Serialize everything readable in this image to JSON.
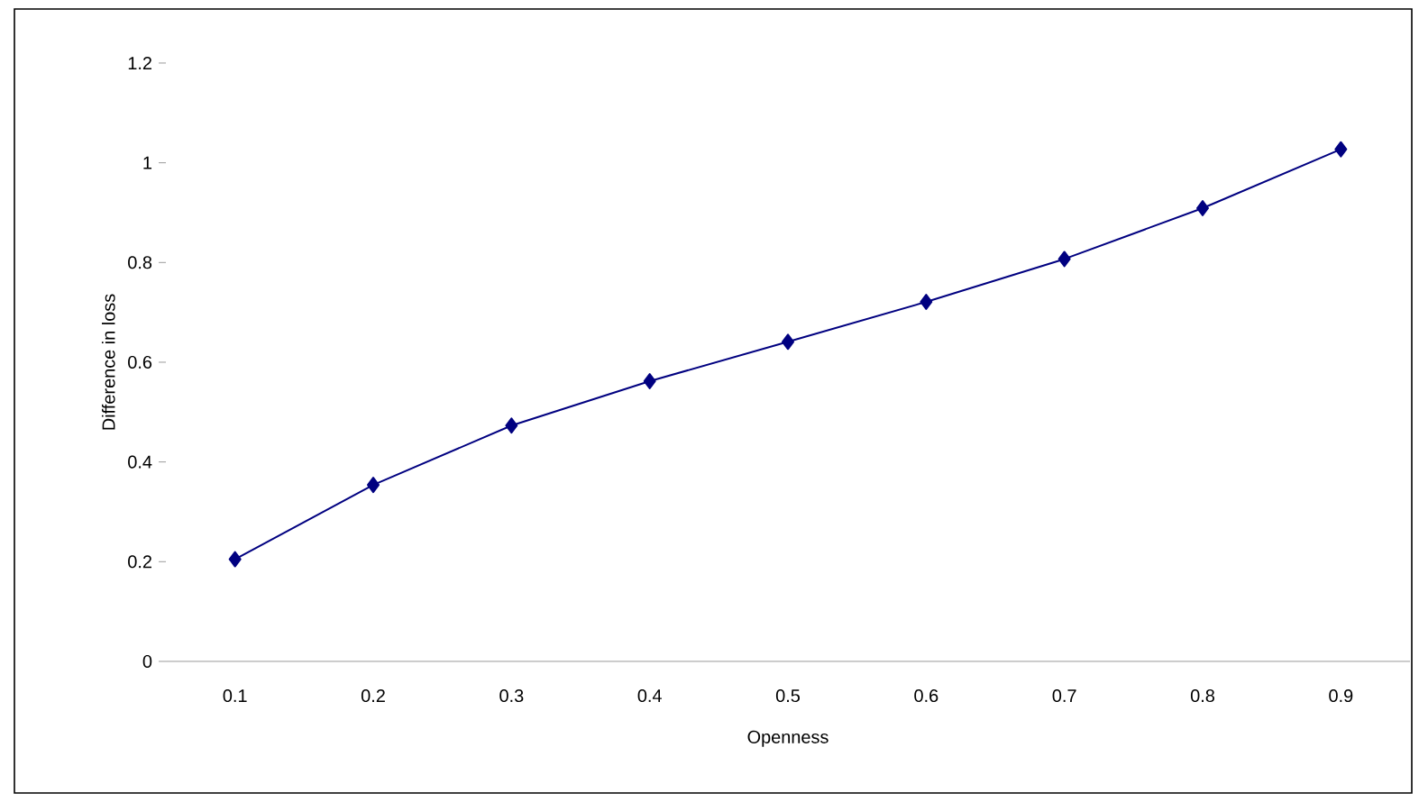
{
  "chart_data": {
    "type": "line",
    "xlabel": "Openness",
    "ylabel": "Difference in loss",
    "categories": [
      "0.1",
      "0.2",
      "0.3",
      "0.4",
      "0.5",
      "0.6",
      "0.7",
      "0.8",
      "0.9"
    ],
    "series": [
      {
        "color": "#000080",
        "values": [
          0.205,
          0.354,
          0.473,
          0.562,
          0.641,
          0.721,
          0.807,
          0.909,
          1.027
        ]
      }
    ],
    "ylim": [
      0,
      1.2
    ],
    "yticks": [
      0,
      0.2,
      0.4,
      0.6,
      0.8,
      1,
      1.2
    ],
    "marker": "diamond",
    "line_style": "solid"
  }
}
